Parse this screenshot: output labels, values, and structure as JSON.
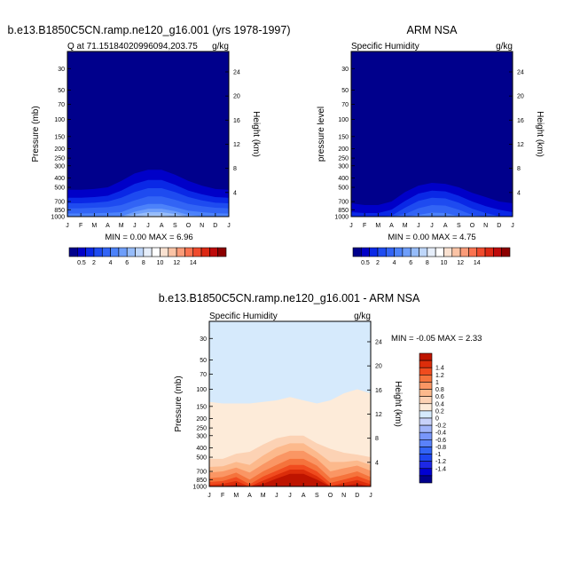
{
  "colors": {
    "abs_scale": [
      "#00008c",
      "#0000c8",
      "#0a28e6",
      "#1e4bf0",
      "#3264f5",
      "#4c82fa",
      "#6e9efa",
      "#96bcfa",
      "#bed6fa",
      "#e6eefa",
      "#ffffff",
      "#fae1d0",
      "#fac3a5",
      "#fa9b78",
      "#fa7350",
      "#f04b2d",
      "#dc2814",
      "#be0a0a",
      "#8c0000"
    ],
    "diff_scale": [
      "#00008c",
      "#0000d2",
      "#1e28e6",
      "#1e46f0",
      "#3264f5",
      "#5a82fa",
      "#7896fa",
      "#a0b4fa",
      "#c8d2fa",
      "#d6eafc",
      "#fdebd9",
      "#fcd2b4",
      "#fcb98c",
      "#fa9664",
      "#f5733c",
      "#f04b1e",
      "#dc2d0a",
      "#be1400",
      "#960000"
    ]
  },
  "shared": {
    "months": [
      "J",
      "F",
      "M",
      "A",
      "M",
      "J",
      "J",
      "A",
      "S",
      "O",
      "N",
      "D",
      "J"
    ],
    "pressure_ticks": [
      "30",
      "50",
      "70",
      "100",
      "150",
      "200",
      "250",
      "300",
      "400",
      "500",
      "700",
      "850",
      "1000"
    ],
    "height_ticks": [
      "4",
      "8",
      "12",
      "16",
      "20",
      "24"
    ]
  },
  "panel1": {
    "title": "b.e13.B1850C5CN.ramp.ne120_g16.001 (yrs 1978-1997)",
    "left_string": "Q at 71.15184020996094,203.75",
    "right_string": "g/kg",
    "ylabel": "Pressure (mb)",
    "ylabel_right": "Height (km)",
    "minmax": "MIN =   0.00 MAX =   6.96",
    "colorbar_labels": [
      "0.5",
      "2",
      "4",
      "6",
      "8",
      "10",
      "12",
      "14"
    ]
  },
  "panel2": {
    "title": "ARM NSA",
    "left_string": "Specific Humidity",
    "right_string": "g/kg",
    "ylabel": "pressure level",
    "ylabel_right": "Height (km)",
    "minmax": "MIN =   0.00 MAX =   4.75",
    "colorbar_labels": [
      "0.5",
      "2",
      "4",
      "6",
      "8",
      "10",
      "12",
      "14"
    ]
  },
  "panel3": {
    "title": "b.e13.B1850C5CN.ramp.ne120_g16.001 - ARM NSA",
    "left_string": "Specific Humidity",
    "right_string": "g/kg",
    "ylabel": "Pressure (mb)",
    "ylabel_right": "Height (km)",
    "minmax": "MIN =  -0.05 MAX =   2.33",
    "colorbar_labels": [
      "1.4",
      "1.2",
      "1",
      "0.8",
      "0.6",
      "0.4",
      "0.2",
      "0",
      "-0.2",
      "-0.4",
      "-0.6",
      "-0.8",
      "-1",
      "-1.2",
      "-1.4"
    ]
  },
  "chart_data": [
    {
      "type": "heatmap",
      "title": "b.e13.B1850C5CN.ramp.ne120_g16.001 (yrs 1978-1997)",
      "subtitle": "Q at 71.15184020996094,203.75",
      "units": "g/kg",
      "x": [
        "J",
        "F",
        "M",
        "A",
        "M",
        "J",
        "J",
        "A",
        "S",
        "O",
        "N",
        "D",
        "J"
      ],
      "ylabel": "Pressure (mb)",
      "y2label": "Height (km)",
      "y_log_scale": true,
      "ylim_mb": [
        1000,
        20
      ],
      "contour_levels": [
        0.5,
        1,
        1.5,
        2,
        3,
        4,
        5,
        6
      ],
      "contour_top_pressure_mb": [
        [
          530,
          530,
          520,
          500,
          430,
          360,
          330,
          330,
          370,
          430,
          480,
          520,
          530
        ],
        [
          640,
          640,
          630,
          610,
          540,
          460,
          420,
          420,
          470,
          540,
          590,
          630,
          640
        ],
        [
          730,
          730,
          720,
          700,
          640,
          560,
          510,
          510,
          560,
          630,
          680,
          720,
          730
        ],
        [
          820,
          820,
          810,
          800,
          760,
          680,
          620,
          620,
          670,
          740,
          780,
          810,
          820
        ],
        [
          930,
          930,
          925,
          915,
          900,
          800,
          740,
          740,
          800,
          870,
          900,
          925,
          930
        ],
        [
          1000,
          1000,
          1000,
          1000,
          990,
          890,
          830,
          830,
          880,
          960,
          990,
          1000,
          1000
        ],
        [
          1000,
          1000,
          1000,
          1000,
          1000,
          950,
          900,
          900,
          940,
          1000,
          1000,
          1000,
          1000
        ],
        [
          1000,
          1000,
          1000,
          1000,
          1000,
          1000,
          970,
          970,
          1000,
          1000,
          1000,
          1000,
          1000
        ]
      ],
      "min": 0.0,
      "max": 6.96
    },
    {
      "type": "heatmap",
      "title": "ARM NSA",
      "subtitle": "Specific Humidity",
      "units": "g/kg",
      "x": [
        "J",
        "F",
        "M",
        "A",
        "M",
        "J",
        "J",
        "A",
        "S",
        "O",
        "N",
        "D",
        "J"
      ],
      "ylabel": "pressure level",
      "y2label": "Height (km)",
      "y_log_scale": true,
      "ylim_mb": [
        1000,
        20
      ],
      "contour_levels": [
        0.5,
        1,
        1.5,
        2,
        3,
        4
      ],
      "contour_top_pressure_mb": [
        [
          730,
          760,
          760,
          700,
          560,
          480,
          450,
          460,
          500,
          570,
          630,
          700,
          730
        ],
        [
          900,
          920,
          920,
          850,
          690,
          580,
          540,
          550,
          610,
          700,
          780,
          850,
          900
        ],
        [
          1000,
          1000,
          1000,
          980,
          810,
          690,
          640,
          650,
          720,
          830,
          920,
          990,
          1000
        ],
        [
          1000,
          1000,
          1000,
          1000,
          940,
          820,
          760,
          770,
          850,
          960,
          1000,
          1000,
          1000
        ],
        [
          1000,
          1000,
          1000,
          1000,
          1000,
          960,
          910,
          920,
          990,
          1000,
          1000,
          1000,
          1000
        ],
        [
          1000,
          1000,
          1000,
          1000,
          1000,
          1000,
          990,
          1000,
          1000,
          1000,
          1000,
          1000,
          1000
        ]
      ],
      "min": 0.0,
      "max": 4.75
    },
    {
      "type": "heatmap",
      "title": "b.e13.B1850C5CN.ramp.ne120_g16.001 - ARM NSA",
      "subtitle": "Specific Humidity",
      "units": "g/kg",
      "x": [
        "J",
        "F",
        "M",
        "A",
        "M",
        "J",
        "J",
        "A",
        "S",
        "O",
        "N",
        "D",
        "J"
      ],
      "ylabel": "Pressure (mb)",
      "y2label": "Height (km)",
      "y_log_scale": true,
      "ylim_mb": [
        1000,
        20
      ],
      "contour_levels": [
        0,
        0.2,
        0.4,
        0.6,
        0.8,
        1,
        1.2,
        1.4
      ],
      "contour_top_pressure_mb": [
        [
          135,
          140,
          140,
          140,
          135,
          130,
          120,
          130,
          140,
          130,
          110,
          100,
          110
        ],
        [
          520,
          520,
          460,
          440,
          370,
          320,
          300,
          300,
          360,
          410,
          450,
          470,
          500
        ],
        [
          630,
          620,
          560,
          600,
          480,
          400,
          360,
          360,
          440,
          560,
          560,
          540,
          600
        ],
        [
          720,
          700,
          640,
          720,
          590,
          490,
          430,
          430,
          520,
          700,
          650,
          610,
          690
        ],
        [
          820,
          800,
          720,
          850,
          700,
          600,
          520,
          520,
          610,
          820,
          760,
          700,
          800
        ],
        [
          900,
          880,
          800,
          950,
          790,
          690,
          600,
          600,
          700,
          920,
          850,
          780,
          880
        ],
        [
          960,
          940,
          880,
          1000,
          870,
          760,
          670,
          670,
          780,
          990,
          920,
          860,
          950
        ],
        [
          1000,
          990,
          960,
          1000,
          940,
          830,
          740,
          740,
          850,
          1000,
          980,
          940,
          1000
        ]
      ],
      "min": -0.05,
      "max": 2.33
    }
  ]
}
